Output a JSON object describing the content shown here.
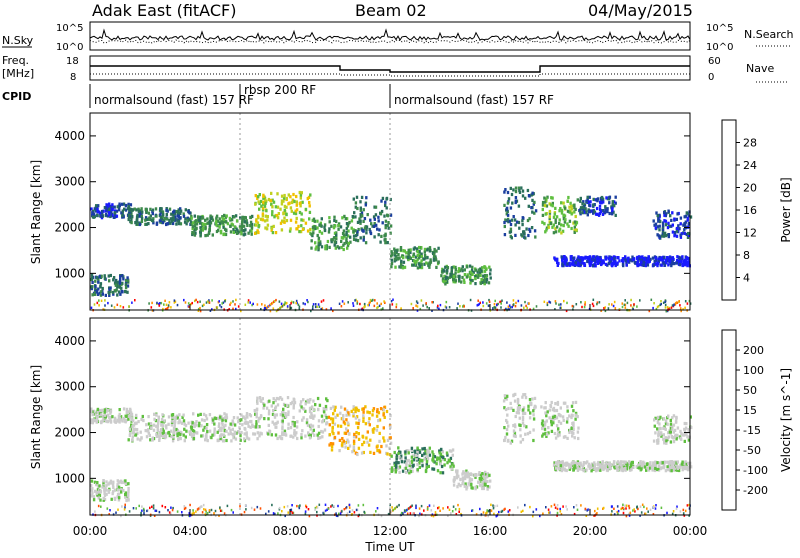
{
  "header": {
    "station": "Adak East (fitACF)",
    "beam": "Beam 02",
    "date": "04/May/2015"
  },
  "time_axis": {
    "ticks": [
      "00:00",
      "04:00",
      "08:00",
      "12:00",
      "16:00",
      "20:00",
      "00:00"
    ],
    "label": "Time UT"
  },
  "strips": {
    "nsky_label": "N.Sky",
    "nsearch_label": "N.Search",
    "nsky_ticks": [
      "10^5",
      "10^0"
    ],
    "nsearch_ticks": [
      "10^5",
      "10^0"
    ],
    "freq_label_line1": "Freq.",
    "freq_label_line2": "[MHz]",
    "freq_ticks": [
      "18",
      "8"
    ],
    "nave_label": "Nave",
    "nave_ticks": [
      "60",
      "0"
    ],
    "cpid_label": "CPID",
    "modes": [
      {
        "name": "normalsound (fast) 157 RF"
      },
      {
        "name": "rbsp 200 RF"
      },
      {
        "name": "normalsound (fast) 157 RF"
      }
    ]
  },
  "colors": {
    "power_scale": [
      "#1a1aff",
      "#1b3f9e",
      "#2a6f5a",
      "#3d8a4a",
      "#5fbf3f",
      "#c0d020",
      "#f0c000",
      "#ff9000",
      "#ff5000",
      "#ff0000"
    ],
    "velocity_scale": [
      "#1a1aff",
      "#1b3f9e",
      "#2a6f5a",
      "#5fbf3f",
      "#cccccc",
      "#cccccc",
      "#f0c000",
      "#ff9000",
      "#ff5000",
      "#ff0000"
    ]
  },
  "chart_data": [
    {
      "type": "heatmap",
      "name": "power",
      "ylabel": "Slant Range [km]",
      "yticks": [
        "4000",
        "3000",
        "2000",
        "1000"
      ],
      "colorbar_label": "Power [dB]",
      "colorbar_ticks": [
        "28",
        "24",
        "20",
        "16",
        "12",
        "8",
        "4"
      ],
      "x_range_hours": [
        0,
        24
      ],
      "y_range_km": [
        200,
        4500
      ],
      "bands": [
        {
          "t0": 0.0,
          "t1": 1.5,
          "r0": 550,
          "r1": 1000,
          "level": 2
        },
        {
          "t0": 0.0,
          "t1": 1.6,
          "r0": 2250,
          "r1": 2550,
          "level": 1
        },
        {
          "t0": 1.5,
          "t1": 4.0,
          "r0": 2100,
          "r1": 2450,
          "level": 2
        },
        {
          "t0": 4.0,
          "t1": 6.5,
          "r0": 1850,
          "r1": 2300,
          "level": 3
        },
        {
          "t0": 6.5,
          "t1": 8.8,
          "r0": 1900,
          "r1": 2800,
          "level": 5
        },
        {
          "t0": 8.8,
          "t1": 10.5,
          "r0": 1550,
          "r1": 2300,
          "level": 3
        },
        {
          "t0": 10.5,
          "t1": 12.0,
          "r0": 1700,
          "r1": 2700,
          "level": 2
        },
        {
          "t0": 12.0,
          "t1": 14.0,
          "r0": 1150,
          "r1": 1600,
          "level": 3
        },
        {
          "t0": 14.0,
          "t1": 16.0,
          "r0": 800,
          "r1": 1200,
          "level": 3
        },
        {
          "t0": 16.5,
          "t1": 17.8,
          "r0": 1800,
          "r1": 2900,
          "level": 2
        },
        {
          "t0": 18.0,
          "t1": 19.5,
          "r0": 1900,
          "r1": 2700,
          "level": 4
        },
        {
          "t0": 19.5,
          "t1": 21.0,
          "r0": 2300,
          "r1": 2700,
          "level": 1
        },
        {
          "t0": 22.5,
          "t1": 24.0,
          "r0": 1800,
          "r1": 2400,
          "level": 1
        },
        {
          "t0": 18.5,
          "t1": 24.0,
          "r0": 1200,
          "r1": 1400,
          "level": 0
        }
      ]
    },
    {
      "type": "heatmap",
      "name": "velocity",
      "ylabel": "Slant Range [km]",
      "yticks": [
        "4000",
        "3000",
        "2000",
        "1000"
      ],
      "colorbar_label": "Velocity [m s^-1]",
      "colorbar_ticks": [
        "200",
        "100",
        "50",
        "15",
        "-15",
        "-50",
        "-100",
        "-200"
      ],
      "x_range_hours": [
        0,
        24
      ],
      "y_range_km": [
        200,
        4500
      ],
      "bands": [
        {
          "t0": 0.0,
          "t1": 1.5,
          "r0": 550,
          "r1": 1000,
          "level": 4
        },
        {
          "t0": 0.0,
          "t1": 1.6,
          "r0": 2250,
          "r1": 2550,
          "level": 4
        },
        {
          "t0": 1.5,
          "t1": 6.5,
          "r0": 1850,
          "r1": 2450,
          "level": 4
        },
        {
          "t0": 6.5,
          "t1": 9.5,
          "r0": 1900,
          "r1": 2800,
          "level": 4
        },
        {
          "t0": 9.5,
          "t1": 12.0,
          "r0": 1550,
          "r1": 2600,
          "level": 6
        },
        {
          "t0": 12.0,
          "t1": 14.5,
          "r0": 1150,
          "r1": 1700,
          "level": 3
        },
        {
          "t0": 14.5,
          "t1": 16.0,
          "r0": 800,
          "r1": 1200,
          "level": 4
        },
        {
          "t0": 16.5,
          "t1": 17.8,
          "r0": 1800,
          "r1": 2900,
          "level": 4
        },
        {
          "t0": 18.0,
          "t1": 19.5,
          "r0": 1900,
          "r1": 2700,
          "level": 4
        },
        {
          "t0": 22.5,
          "t1": 24.0,
          "r0": 1800,
          "r1": 2400,
          "level": 4
        },
        {
          "t0": 18.5,
          "t1": 24.0,
          "r0": 1200,
          "r1": 1400,
          "level": 4
        }
      ]
    }
  ]
}
